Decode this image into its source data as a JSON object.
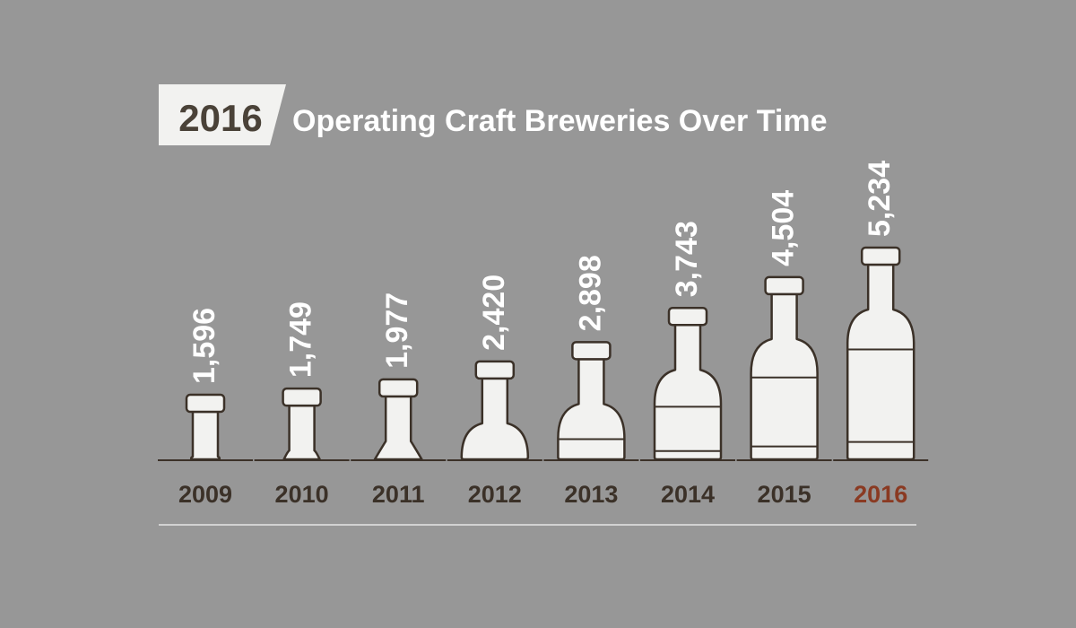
{
  "title": {
    "year": "2016",
    "text": "Operating Craft Breweries Over Time"
  },
  "colors": {
    "background": "#979797",
    "bottle_fill": "#f2f2f0",
    "bottle_stroke": "#3b3128",
    "label_default": "#3b3128",
    "label_highlight": "#8a3a22",
    "title_text": "#ffffff",
    "rule": "#e6e6e6"
  },
  "chart_data": {
    "type": "bar",
    "title": "Operating Craft Breweries Over Time",
    "xlabel": "",
    "ylabel": "",
    "categories": [
      "2009",
      "2010",
      "2011",
      "2012",
      "2013",
      "2014",
      "2015",
      "2016"
    ],
    "values": [
      1596,
      1749,
      1977,
      2420,
      2898,
      3743,
      4504,
      5234
    ],
    "value_labels": [
      "1,596",
      "1,749",
      "1,977",
      "2,420",
      "2,898",
      "3,743",
      "4,504",
      "5,234"
    ],
    "highlight_category": "2016",
    "ylim": [
      0,
      5234
    ],
    "grid": false,
    "legend": "none",
    "mark": "bottle-icon"
  }
}
